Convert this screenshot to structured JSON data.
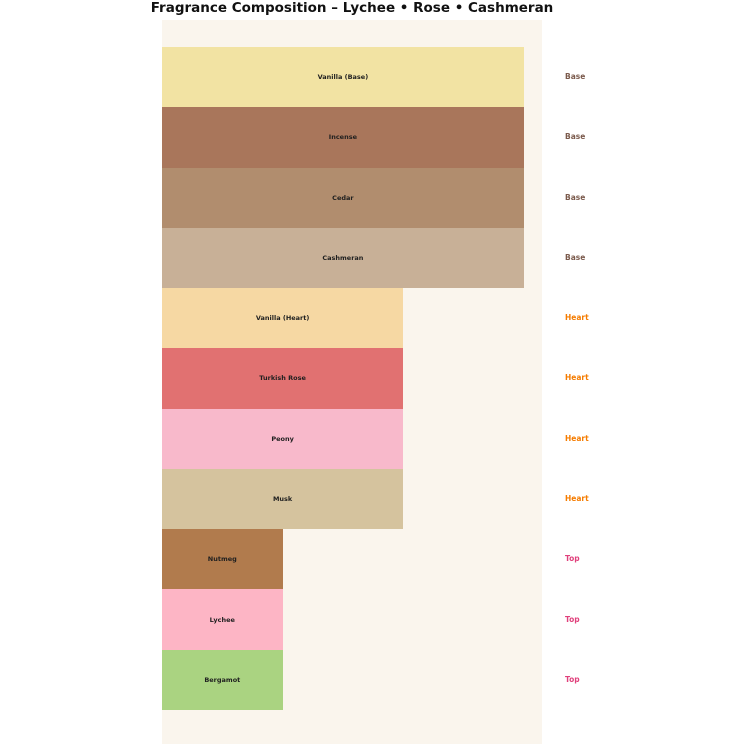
{
  "title": "Fragrance Composition – Lychee • Rose • Cashmeran",
  "chart_data": {
    "type": "bar",
    "orientation": "horizontal",
    "title": "Fragrance Composition – Lychee • Rose • Cashmeran",
    "xlabel": "",
    "ylabel": "",
    "xlim": [
      0,
      3.15
    ],
    "grid": false,
    "legend": "none",
    "axes_visible": false,
    "plot_background": "#faf5ed",
    "page_background": "#ffffff",
    "bar_label_color": "#1f1f1f",
    "bars": [
      {
        "label": "Vanilla (Base)",
        "tier": "Base",
        "value": 3,
        "color": "#f2e3a3"
      },
      {
        "label": "Incense",
        "tier": "Base",
        "value": 3,
        "color": "#a9765b"
      },
      {
        "label": "Cedar",
        "tier": "Base",
        "value": 3,
        "color": "#b18d6e"
      },
      {
        "label": "Cashmeran",
        "tier": "Base",
        "value": 3,
        "color": "#c8b097"
      },
      {
        "label": "Vanilla (Heart)",
        "tier": "Heart",
        "value": 2,
        "color": "#f6d8a3"
      },
      {
        "label": "Turkish Rose",
        "tier": "Heart",
        "value": 2,
        "color": "#e17171"
      },
      {
        "label": "Peony",
        "tier": "Heart",
        "value": 2,
        "color": "#f8b9cb"
      },
      {
        "label": "Musk",
        "tier": "Heart",
        "value": 2,
        "color": "#d5c39e"
      },
      {
        "label": "Nutmeg",
        "tier": "Top",
        "value": 1,
        "color": "#b17b4d"
      },
      {
        "label": "Lychee",
        "tier": "Top",
        "value": 1,
        "color": "#fdb5c5"
      },
      {
        "label": "Bergamot",
        "tier": "Top",
        "value": 1,
        "color": "#aad381"
      }
    ],
    "tier_label_colors": {
      "Base": "#7b5a4c",
      "Heart": "#f57c00",
      "Top": "#e0417c"
    }
  }
}
